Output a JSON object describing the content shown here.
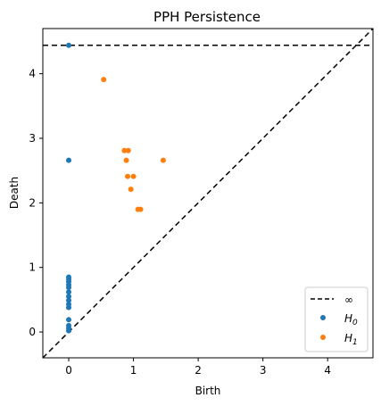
{
  "chart_data": {
    "type": "scatter",
    "title": "PPH Persistence",
    "xlabel": "Birth",
    "ylabel": "Death",
    "xlim": [
      -0.4,
      4.7
    ],
    "ylim": [
      -0.4,
      4.7
    ],
    "xticks": [
      "0",
      "1",
      "2",
      "3",
      "4"
    ],
    "yticks": [
      "0",
      "1",
      "2",
      "3",
      "4"
    ],
    "grid": false,
    "legend_position": "bottom-right",
    "infinity_death": 4.44,
    "diagonal": true,
    "series": [
      {
        "name": "∞",
        "kind": "dashed-line",
        "color": "#000000"
      },
      {
        "name": "H0",
        "kind": "points",
        "color": "#1f77b4",
        "points": [
          [
            0,
            4.44
          ],
          [
            0,
            2.66
          ],
          [
            0,
            0.85
          ],
          [
            0,
            0.82
          ],
          [
            0,
            0.78
          ],
          [
            0,
            0.73
          ],
          [
            0,
            0.69
          ],
          [
            0,
            0.62
          ],
          [
            0,
            0.55
          ],
          [
            0,
            0.49
          ],
          [
            0,
            0.43
          ],
          [
            0,
            0.38
          ],
          [
            0,
            0.19
          ],
          [
            0,
            0.1
          ],
          [
            0,
            0.06
          ],
          [
            0,
            0.02
          ]
        ]
      },
      {
        "name": "H1",
        "kind": "points",
        "color": "#ff7f0e",
        "points": [
          [
            0.54,
            3.91
          ],
          [
            0.86,
            2.81
          ],
          [
            0.92,
            2.81
          ],
          [
            0.89,
            2.66
          ],
          [
            1.46,
            2.66
          ],
          [
            0.91,
            2.41
          ],
          [
            1.0,
            2.41
          ],
          [
            0.96,
            2.21
          ],
          [
            1.07,
            1.9
          ],
          [
            1.11,
            1.9
          ]
        ]
      }
    ]
  }
}
